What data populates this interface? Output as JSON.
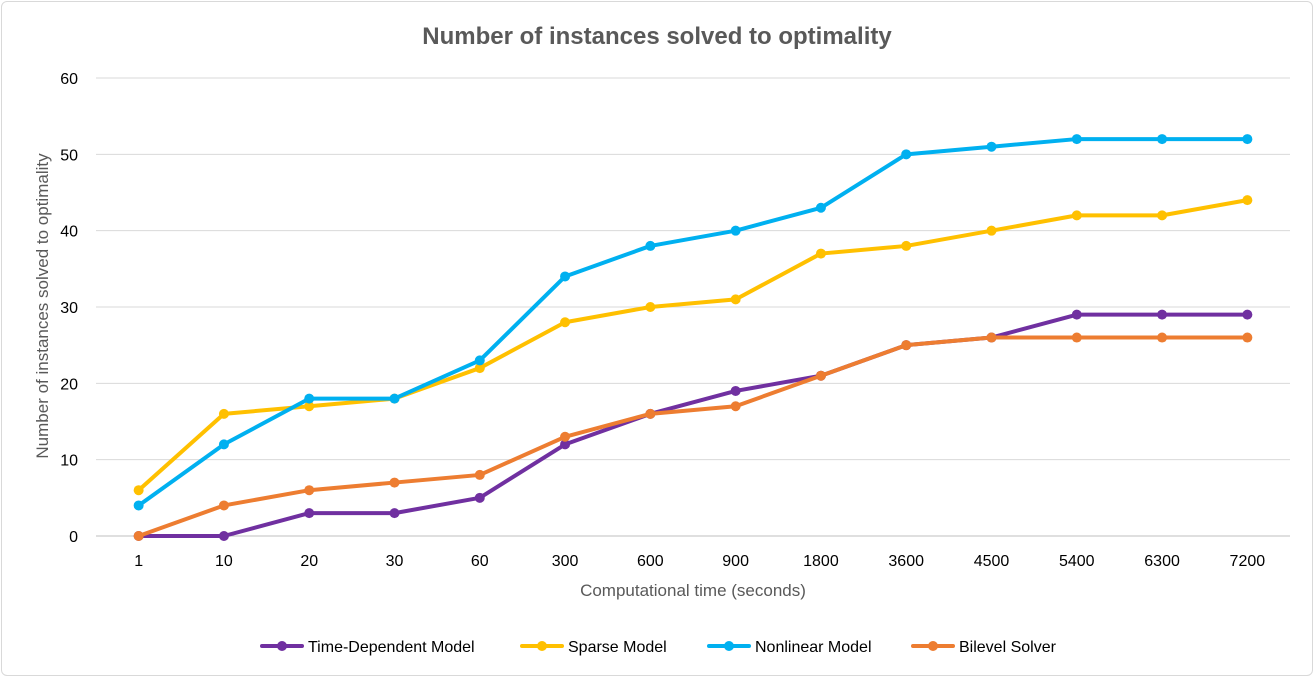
{
  "chart_data": {
    "type": "line",
    "title": "Number of instances solved to optimality",
    "xlabel": "Computational time (seconds)",
    "ylabel": "Number of instances solved to optimality",
    "ylim": [
      0,
      60
    ],
    "yticks": [
      "0",
      "10",
      "20",
      "30",
      "40",
      "50",
      "60"
    ],
    "categories": [
      "1",
      "10",
      "20",
      "30",
      "60",
      "300",
      "600",
      "900",
      "1800",
      "3600",
      "4500",
      "5400",
      "6300",
      "7200"
    ],
    "grid": true,
    "legend_position": "bottom",
    "series": [
      {
        "name": "Time-Dependent Model",
        "color": "#7030a0",
        "values": [
          0,
          0,
          3,
          3,
          5,
          12,
          16,
          19,
          21,
          25,
          26,
          29,
          29,
          29
        ]
      },
      {
        "name": "Sparse Model",
        "color": "#ffc000",
        "values": [
          6,
          16,
          17,
          18,
          22,
          28,
          30,
          31,
          37,
          38,
          40,
          42,
          42,
          44
        ]
      },
      {
        "name": "Nonlinear Model",
        "color": "#00b0f0",
        "values": [
          4,
          12,
          18,
          18,
          23,
          34,
          38,
          40,
          43,
          50,
          51,
          52,
          52,
          52
        ]
      },
      {
        "name": "Bilevel Solver",
        "color": "#ed7d31",
        "values": [
          0,
          4,
          6,
          7,
          8,
          13,
          16,
          17,
          21,
          25,
          26,
          26,
          26,
          26
        ]
      }
    ]
  }
}
